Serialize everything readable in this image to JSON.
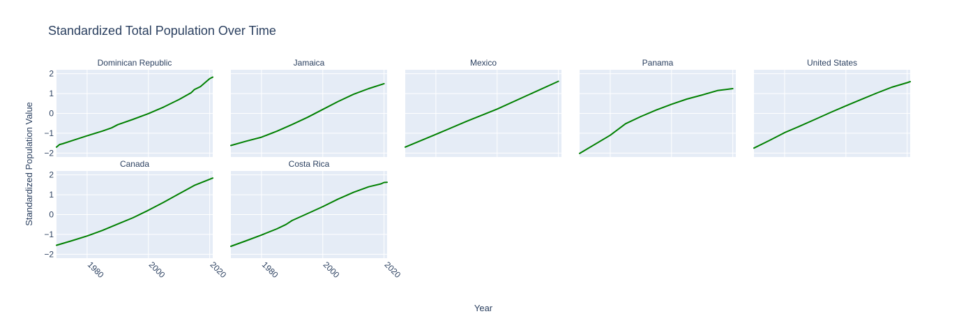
{
  "chart_data": {
    "type": "line",
    "title": "Standardized Total Population Over Time",
    "xlabel": "Year",
    "ylabel": "Standardized Population Value",
    "xlim": [
      1970,
      2021
    ],
    "ylim": [
      -2.2,
      2.2
    ],
    "x_ticks": [
      1980,
      2000,
      2020
    ],
    "y_ticks": [
      -2,
      -1,
      0,
      1,
      2
    ],
    "x_tick_labels": [
      "1980",
      "2000",
      "2020"
    ],
    "y_tick_labels": [
      "−2",
      "−1",
      "0",
      "1",
      "2"
    ],
    "grid": true,
    "line_color": "#008000",
    "panels": [
      {
        "name": "Dominican Republic",
        "x": [
          1970,
          1971,
          1972,
          1975,
          1980,
          1985,
          1988,
          1990,
          1995,
          2000,
          2005,
          2010,
          2014,
          2015,
          2017,
          2019,
          2020,
          2021
        ],
        "y": [
          -1.7,
          -1.57,
          -1.53,
          -1.38,
          -1.13,
          -0.89,
          -0.73,
          -0.57,
          -0.3,
          -0.01,
          0.32,
          0.7,
          1.05,
          1.2,
          1.35,
          1.62,
          1.75,
          1.83
        ]
      },
      {
        "name": "Jamaica",
        "x": [
          1970,
          1975,
          1980,
          1985,
          1990,
          1995,
          2000,
          2005,
          2010,
          2015,
          2020
        ],
        "y": [
          -1.62,
          -1.4,
          -1.2,
          -0.9,
          -0.56,
          -0.2,
          0.2,
          0.6,
          0.96,
          1.25,
          1.5
        ]
      },
      {
        "name": "Mexico",
        "x": [
          1970,
          1980,
          1990,
          2000,
          2010,
          2020
        ],
        "y": [
          -1.7,
          -1.06,
          -0.4,
          0.22,
          0.92,
          1.62
        ]
      },
      {
        "name": "Panama",
        "x": [
          1970,
          1980,
          1985,
          1990,
          1995,
          2000,
          2005,
          2010,
          2015,
          2020
        ],
        "y": [
          -2.02,
          -1.1,
          -0.52,
          -0.16,
          0.17,
          0.46,
          0.72,
          0.93,
          1.15,
          1.25
        ]
      },
      {
        "name": "United States",
        "x": [
          1970,
          1975,
          1980,
          1985,
          1990,
          1995,
          2000,
          2005,
          2010,
          2015,
          2020,
          2021
        ],
        "y": [
          -1.75,
          -1.37,
          -0.97,
          -0.64,
          -0.3,
          0.05,
          0.38,
          0.7,
          1.02,
          1.32,
          1.55,
          1.6
        ]
      },
      {
        "name": "Canada",
        "x": [
          1970,
          1975,
          1980,
          1985,
          1990,
          1995,
          2000,
          2005,
          2010,
          2015,
          2021
        ],
        "y": [
          -1.55,
          -1.32,
          -1.08,
          -0.8,
          -0.48,
          -0.16,
          0.22,
          0.62,
          1.05,
          1.47,
          1.84
        ]
      },
      {
        "name": "Costa Rica",
        "x": [
          1970,
          1975,
          1980,
          1985,
          1988,
          1990,
          1995,
          2000,
          2005,
          2010,
          2015,
          2019,
          2020,
          2021
        ],
        "y": [
          -1.6,
          -1.32,
          -1.03,
          -0.72,
          -0.5,
          -0.3,
          0.05,
          0.4,
          0.78,
          1.12,
          1.4,
          1.55,
          1.62,
          1.63
        ]
      }
    ]
  }
}
